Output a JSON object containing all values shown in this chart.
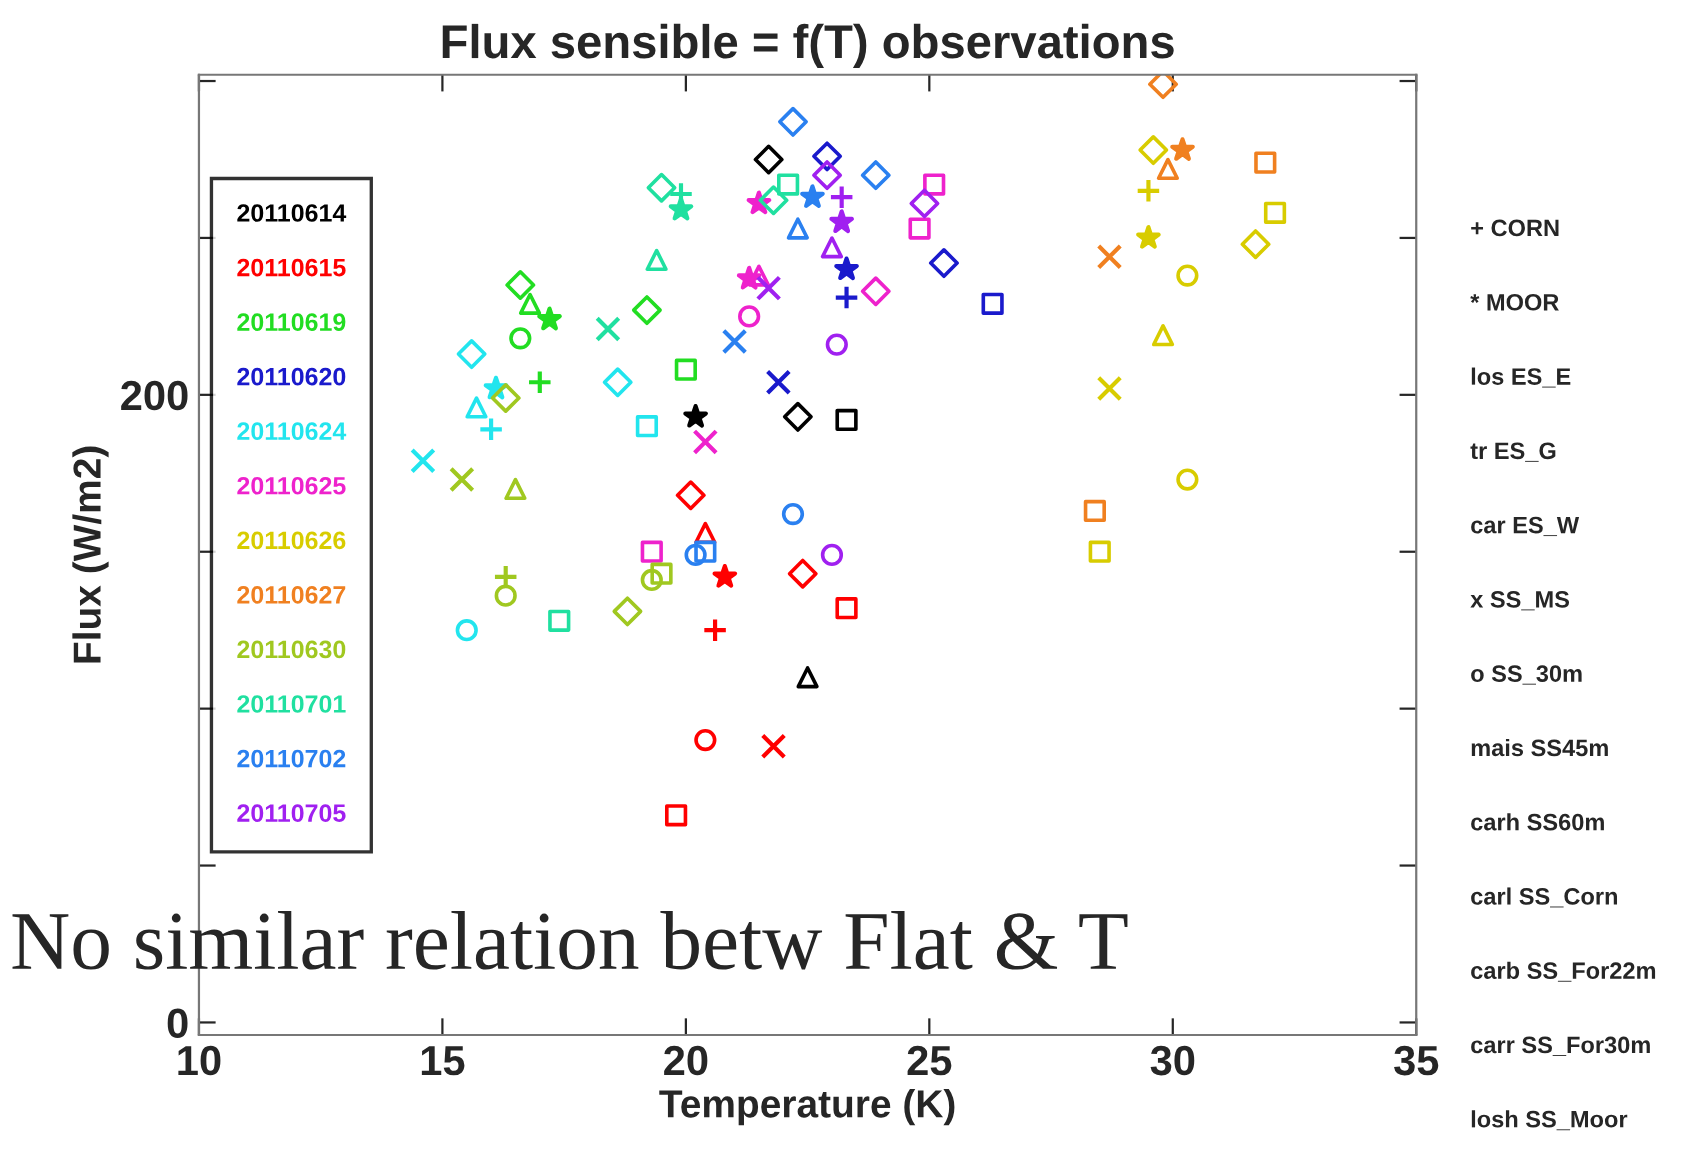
{
  "chart_data": {
    "type": "scatter",
    "title": "Flux sensible = f(T) observations",
    "xlabel": "Temperature (K)",
    "ylabel": "Flux (W/m2)",
    "xlim": [
      10,
      35
    ],
    "xticks": [
      10,
      15,
      20,
      25,
      30,
      35
    ],
    "ylim": [
      -4,
      302
    ],
    "yticks": [
      0,
      {
        "value": 50,
        "label": null
      },
      {
        "value": 100,
        "label": null
      },
      {
        "value": 150,
        "label": null
      },
      200,
      {
        "value": 250,
        "label": null
      },
      {
        "value": 300,
        "label": null
      }
    ],
    "grid": false,
    "legend": "top left",
    "annotations": [
      "No similar relation betw Flat & T",
      "+ CORN",
      "* MOOR",
      "los ES_E",
      "tr ES_G",
      "car ES_W",
      "x SS_MS",
      "o SS_30m",
      "mais SS45m",
      "carh SS60m",
      "carl SS_Corn",
      "carb SS_For22m",
      "carr SS_For30m",
      "losh SS_Moor"
    ],
    "series": [
      {
        "name": "20110614",
        "color": "#000000",
        "marker": "diamond",
        "x": [
          21.7,
          22.3
        ],
        "values": [
          275,
          193
        ]
      },
      {
        "color": "#000000",
        "marker": "star",
        "x": [
          20.2
        ],
        "values": [
          193
        ]
      },
      {
        "color": "#000000",
        "marker": "square",
        "x": [
          23.3
        ],
        "values": [
          192
        ]
      },
      {
        "color": "#000000",
        "marker": "triangle",
        "x": [
          22.5
        ],
        "values": [
          110
        ]
      },
      {
        "name": "20110615",
        "color": "#ff0000",
        "marker": "diamond",
        "x": [
          20.1,
          22.4
        ],
        "values": [
          168,
          143
        ]
      },
      {
        "color": "#ff0000",
        "marker": "triangle",
        "x": [
          20.4
        ],
        "values": [
          156
        ]
      },
      {
        "color": "#ff0000",
        "marker": "star",
        "x": [
          20.8
        ],
        "values": [
          142
        ]
      },
      {
        "color": "#ff0000",
        "marker": "square",
        "x": [
          23.3,
          19.8
        ],
        "values": [
          132,
          66
        ]
      },
      {
        "color": "#ff0000",
        "marker": "plus",
        "x": [
          20.6
        ],
        "values": [
          125
        ]
      },
      {
        "color": "#ff0000",
        "marker": "circle",
        "x": [
          20.4
        ],
        "values": [
          90
        ]
      },
      {
        "color": "#ff0000",
        "marker": "cross",
        "x": [
          21.8
        ],
        "values": [
          88
        ]
      },
      {
        "name": "20110619",
        "color": "#22dd22",
        "marker": "diamond",
        "x": [
          16.6,
          19.2
        ],
        "values": [
          235,
          227
        ]
      },
      {
        "color": "#22dd22",
        "marker": "triangle",
        "x": [
          16.8
        ],
        "values": [
          229
        ]
      },
      {
        "color": "#22dd22",
        "marker": "star",
        "x": [
          17.2
        ],
        "values": [
          224
        ]
      },
      {
        "color": "#22dd22",
        "marker": "circle",
        "x": [
          16.6
        ],
        "values": [
          218
        ]
      },
      {
        "color": "#22dd22",
        "marker": "plus",
        "x": [
          17.0
        ],
        "values": [
          204
        ]
      },
      {
        "color": "#22dd22",
        "marker": "square",
        "x": [
          20.0
        ],
        "values": [
          208
        ]
      },
      {
        "name": "20110620",
        "color": "#1a1acc",
        "marker": "diamond",
        "x": [
          22.9,
          25.3
        ],
        "values": [
          276,
          242
        ]
      },
      {
        "color": "#1a1acc",
        "marker": "star",
        "x": [
          23.3
        ],
        "values": [
          240
        ]
      },
      {
        "color": "#1a1acc",
        "marker": "plus",
        "x": [
          23.3
        ],
        "values": [
          231
        ]
      },
      {
        "color": "#1a1acc",
        "marker": "cross",
        "x": [
          21.9
        ],
        "values": [
          204
        ]
      },
      {
        "color": "#1a1acc",
        "marker": "square",
        "x": [
          26.3
        ],
        "values": [
          229
        ]
      },
      {
        "name": "20110624",
        "color": "#22e5ee",
        "marker": "diamond",
        "x": [
          15.6,
          18.6
        ],
        "values": [
          213,
          204
        ]
      },
      {
        "color": "#22e5ee",
        "marker": "star",
        "x": [
          16.1
        ],
        "values": [
          202
        ]
      },
      {
        "color": "#22e5ee",
        "marker": "triangle",
        "x": [
          15.7
        ],
        "values": [
          196
        ]
      },
      {
        "color": "#22e5ee",
        "marker": "plus",
        "x": [
          16.0
        ],
        "values": [
          189
        ]
      },
      {
        "color": "#22e5ee",
        "marker": "square",
        "x": [
          19.2
        ],
        "values": [
          190
        ]
      },
      {
        "color": "#22e5ee",
        "marker": "cross",
        "x": [
          14.6
        ],
        "values": [
          179
        ]
      },
      {
        "color": "#22e5ee",
        "marker": "circle",
        "x": [
          15.5
        ],
        "values": [
          125
        ]
      },
      {
        "name": "20110625",
        "color": "#ee22cc",
        "marker": "star",
        "x": [
          21.5,
          21.3
        ],
        "values": [
          261,
          237
        ]
      },
      {
        "color": "#ee22cc",
        "marker": "square",
        "x": [
          24.8,
          19.3,
          25.1
        ],
        "values": [
          253,
          150,
          267
        ]
      },
      {
        "color": "#ee22cc",
        "marker": "diamond",
        "x": [
          23.9
        ],
        "values": [
          233
        ]
      },
      {
        "color": "#ee22cc",
        "marker": "cross",
        "x": [
          20.4
        ],
        "values": [
          185
        ]
      },
      {
        "color": "#ee22cc",
        "marker": "circle",
        "x": [
          21.3
        ],
        "values": [
          225
        ]
      },
      {
        "color": "#ee22cc",
        "marker": "triangle",
        "x": [
          21.5
        ],
        "values": [
          238
        ]
      },
      {
        "name": "20110626",
        "color": "#d8cc00",
        "marker": "diamond",
        "x": [
          29.6,
          31.7
        ],
        "values": [
          278,
          248
        ]
      },
      {
        "color": "#d8cc00",
        "marker": "plus",
        "x": [
          29.5
        ],
        "values": [
          265
        ]
      },
      {
        "color": "#d8cc00",
        "marker": "star",
        "x": [
          29.5
        ],
        "values": [
          250
        ]
      },
      {
        "color": "#d8cc00",
        "marker": "circle",
        "x": [
          30.3,
          30.3
        ],
        "values": [
          238,
          173
        ]
      },
      {
        "color": "#d8cc00",
        "marker": "square",
        "x": [
          32.1,
          28.5
        ],
        "values": [
          258,
          150
        ]
      },
      {
        "color": "#d8cc00",
        "marker": "triangle",
        "x": [
          29.8
        ],
        "values": [
          219
        ]
      },
      {
        "color": "#d8cc00",
        "marker": "cross",
        "x": [
          28.7
        ],
        "values": [
          202
        ]
      },
      {
        "name": "20110627",
        "color": "#f08020",
        "marker": "diamond",
        "x": [
          29.8
        ],
        "values": [
          299
        ]
      },
      {
        "color": "#f08020",
        "marker": "star",
        "x": [
          30.2
        ],
        "values": [
          278
        ]
      },
      {
        "color": "#f08020",
        "marker": "triangle",
        "x": [
          29.9
        ],
        "values": [
          272
        ]
      },
      {
        "color": "#f08020",
        "marker": "square",
        "x": [
          31.9,
          28.4
        ],
        "values": [
          274,
          163
        ]
      },
      {
        "color": "#f08020",
        "marker": "cross",
        "x": [
          28.7
        ],
        "values": [
          244
        ]
      },
      {
        "name": "20110630",
        "color": "#a0c820",
        "marker": "cross",
        "x": [
          15.4
        ],
        "values": [
          173
        ]
      },
      {
        "color": "#a0c820",
        "marker": "triangle",
        "x": [
          16.5
        ],
        "values": [
          170
        ]
      },
      {
        "color": "#a0c820",
        "marker": "plus",
        "x": [
          16.3
        ],
        "values": [
          142
        ]
      },
      {
        "color": "#a0c820",
        "marker": "circle",
        "x": [
          16.3,
          19.3
        ],
        "values": [
          136,
          141
        ]
      },
      {
        "color": "#a0c820",
        "marker": "diamond",
        "x": [
          18.8,
          16.3
        ],
        "values": [
          131,
          199
        ]
      },
      {
        "color": "#a0c820",
        "marker": "square",
        "x": [
          19.5
        ],
        "values": [
          143
        ]
      },
      {
        "name": "20110701",
        "color": "#20e0a0",
        "marker": "diamond",
        "x": [
          19.5,
          21.8
        ],
        "values": [
          266,
          262
        ]
      },
      {
        "color": "#20e0a0",
        "marker": "plus",
        "x": [
          19.9
        ],
        "values": [
          264
        ]
      },
      {
        "color": "#20e0a0",
        "marker": "star",
        "x": [
          19.9
        ],
        "values": [
          259
        ]
      },
      {
        "color": "#20e0a0",
        "marker": "triangle",
        "x": [
          19.4
        ],
        "values": [
          243
        ]
      },
      {
        "color": "#20e0a0",
        "marker": "square",
        "x": [
          22.1,
          17.4
        ],
        "values": [
          267,
          128
        ]
      },
      {
        "color": "#20e0a0",
        "marker": "cross",
        "x": [
          18.4
        ],
        "values": [
          221
        ]
      },
      {
        "name": "20110702",
        "color": "#2a80f0",
        "marker": "diamond",
        "x": [
          22.2,
          23.9
        ],
        "values": [
          287,
          270
        ]
      },
      {
        "color": "#2a80f0",
        "marker": "triangle",
        "x": [
          22.3
        ],
        "values": [
          253
        ]
      },
      {
        "color": "#2a80f0",
        "marker": "cross",
        "x": [
          21.0
        ],
        "values": [
          217
        ]
      },
      {
        "color": "#2a80f0",
        "marker": "circle",
        "x": [
          20.2,
          22.2
        ],
        "values": [
          149,
          162
        ]
      },
      {
        "color": "#2a80f0",
        "marker": "square",
        "x": [
          20.4
        ],
        "values": [
          150
        ]
      },
      {
        "color": "#2a80f0",
        "marker": "star",
        "x": [
          22.6
        ],
        "values": [
          263
        ]
      },
      {
        "name": "20110705",
        "color": "#a020f0",
        "marker": "triangle",
        "x": [
          23.0
        ],
        "values": [
          247
        ]
      },
      {
        "color": "#a020f0",
        "marker": "star",
        "x": [
          23.2
        ],
        "values": [
          255
        ]
      },
      {
        "color": "#a020f0",
        "marker": "plus",
        "x": [
          23.2
        ],
        "values": [
          263
        ]
      },
      {
        "color": "#a020f0",
        "marker": "diamond",
        "x": [
          22.9,
          24.9
        ],
        "values": [
          270,
          261
        ]
      },
      {
        "color": "#a020f0",
        "marker": "cross",
        "x": [
          21.7
        ],
        "values": [
          234
        ]
      },
      {
        "color": "#a020f0",
        "marker": "circle",
        "x": [
          23.1,
          23.0
        ],
        "values": [
          216,
          149
        ]
      }
    ]
  }
}
